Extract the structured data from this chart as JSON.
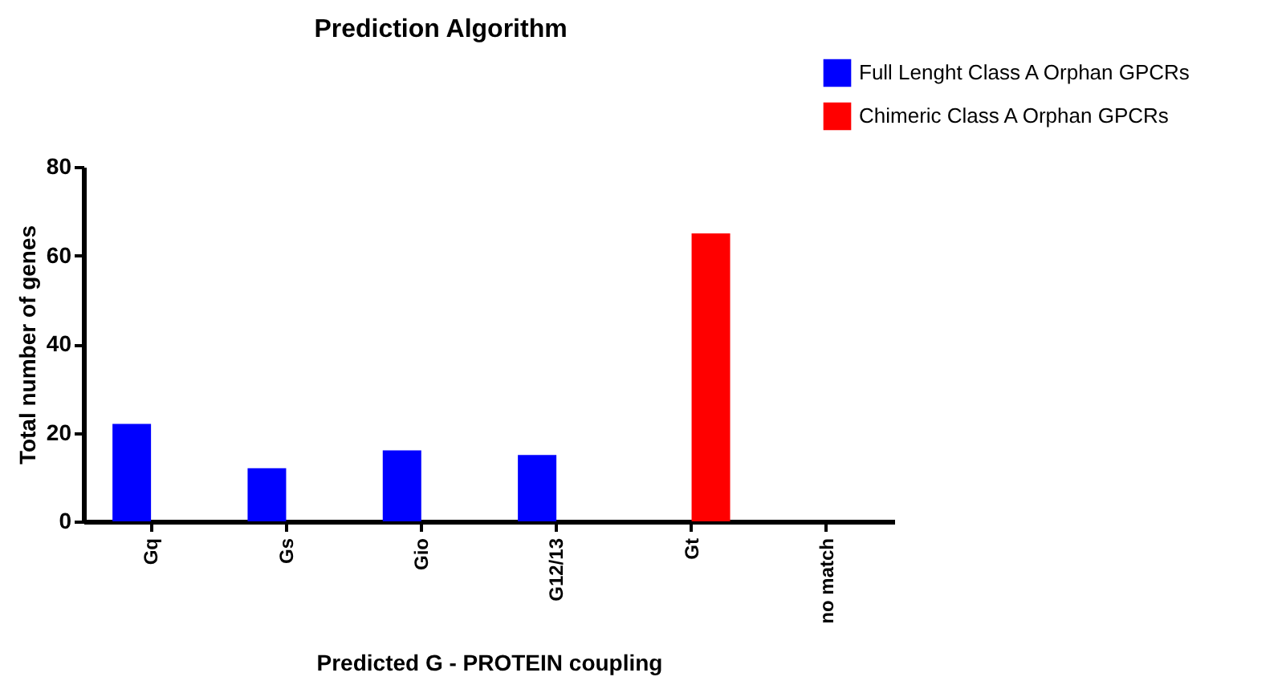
{
  "chart_data": {
    "type": "bar",
    "title": "Prediction Algorithm",
    "categories": [
      "Gq",
      "Gs",
      "Gio",
      "G12/13",
      "Gt",
      "no match"
    ],
    "series": [
      {
        "name": "Full Lenght Class A Orphan GPCRs",
        "color": "#0000ff",
        "values": [
          22,
          12,
          16,
          15,
          null,
          null
        ]
      },
      {
        "name": "Chimeric Class A Orphan GPCRs",
        "color": "#ff0000",
        "values": [
          null,
          null,
          null,
          null,
          65,
          null
        ]
      }
    ],
    "xlabel": "Predicted G - PROTEIN coupling",
    "ylabel": "Total number of genes",
    "ylim": [
      0,
      80
    ],
    "yticks": [
      0,
      20,
      40,
      60,
      80
    ],
    "grid": false,
    "legend": "top right"
  }
}
